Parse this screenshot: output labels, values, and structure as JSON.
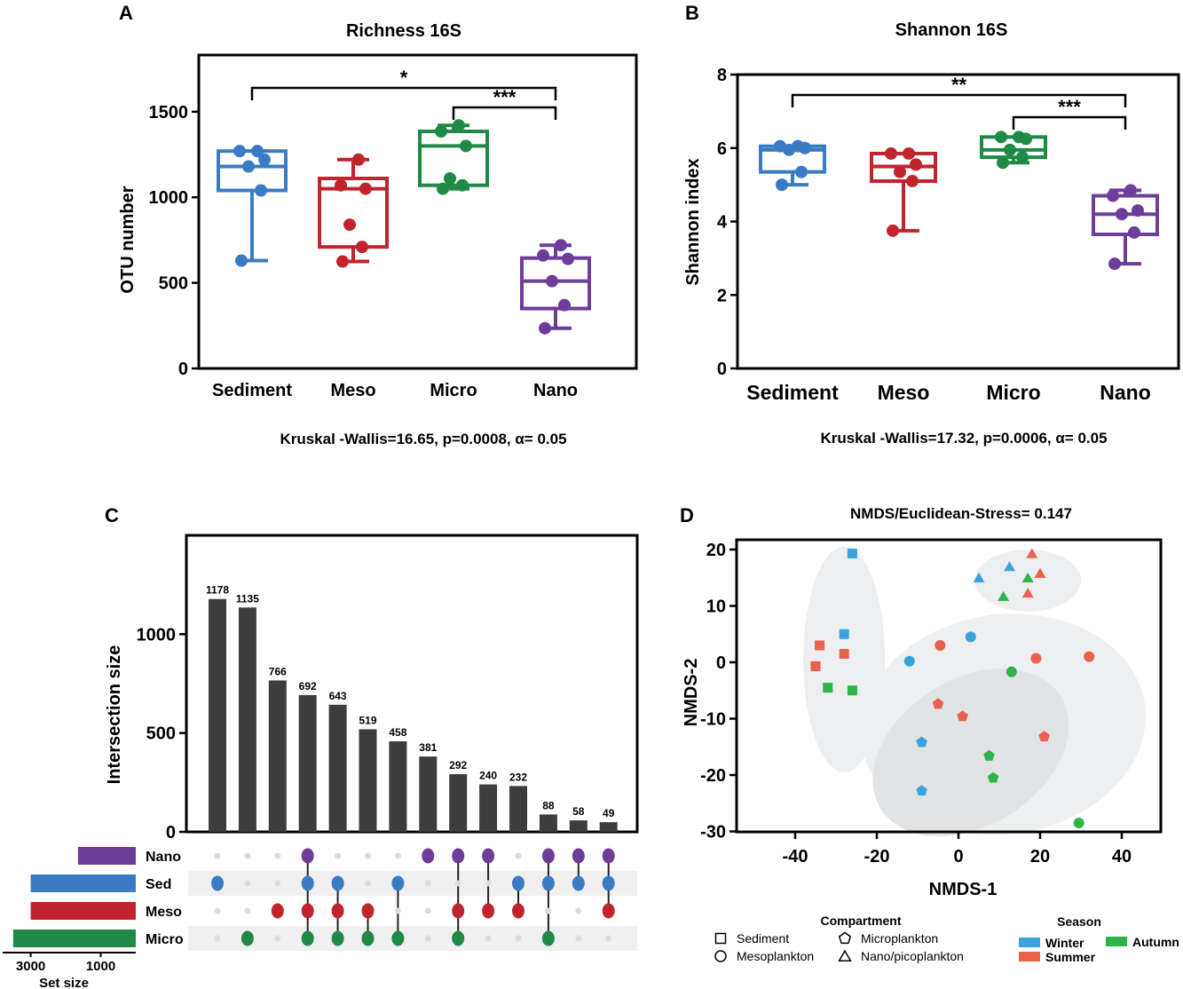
{
  "colors": {
    "sediment": "#3a7cc4",
    "meso": "#c0242c",
    "micro": "#1e8a46",
    "nano": "#6d3d9a",
    "bar": "#3d3d3d",
    "winter": "#3aa3dd",
    "summer": "#e9604c",
    "autumn": "#2cb34a"
  },
  "panels": {
    "a": "A",
    "b": "B",
    "c": "C",
    "d": "D"
  },
  "chart_data": [
    {
      "type": "box",
      "title": "Richness 16S",
      "xlabel": "",
      "ylabel": "OTU number",
      "categories": [
        "Sediment",
        "Meso",
        "Micro",
        "Nano"
      ],
      "ylim": [
        0,
        1800
      ],
      "yticks": [
        0,
        500,
        1000,
        1500
      ],
      "boxes": [
        {
          "min": 630,
          "q1": 1040,
          "median": 1180,
          "q3": 1270,
          "max": 1270,
          "points": [
            630,
            1040,
            1180,
            1220,
            1270,
            1270
          ]
        },
        {
          "min": 625,
          "q1": 710,
          "median": 1050,
          "q3": 1110,
          "max": 1220,
          "points": [
            625,
            710,
            840,
            1050,
            1070,
            1220
          ]
        },
        {
          "min": 1050,
          "q1": 1070,
          "median": 1300,
          "q3": 1385,
          "max": 1420,
          "points": [
            1050,
            1070,
            1110,
            1300,
            1385,
            1420
          ]
        },
        {
          "min": 235,
          "q1": 350,
          "median": 510,
          "q3": 645,
          "max": 720,
          "points": [
            235,
            370,
            510,
            640,
            660,
            720
          ]
        }
      ],
      "significance": [
        {
          "from": "Sediment",
          "to": "Nano",
          "label": "*"
        },
        {
          "from": "Micro",
          "to": "Nano",
          "label": "***"
        }
      ],
      "stat": "Kruskal -Wallis=16.65, p=0.0008, α= 0.05"
    },
    {
      "type": "box",
      "title": "Shannon 16S",
      "xlabel": "",
      "ylabel": "Shannon index",
      "categories": [
        "Sediment",
        "Meso",
        "Micro",
        "Nano"
      ],
      "ylim": [
        0,
        8
      ],
      "yticks": [
        0,
        2,
        4,
        6,
        8
      ],
      "boxes": [
        {
          "min": 5.0,
          "q1": 5.35,
          "median": 5.95,
          "q3": 6.05,
          "max": 6.05,
          "points": [
            5.0,
            5.35,
            5.95,
            6.0,
            6.05,
            6.05
          ]
        },
        {
          "min": 3.75,
          "q1": 5.1,
          "median": 5.5,
          "q3": 5.85,
          "max": 5.85,
          "points": [
            3.75,
            5.1,
            5.35,
            5.55,
            5.85,
            5.85
          ]
        },
        {
          "min": 5.6,
          "q1": 5.75,
          "median": 5.95,
          "q3": 6.3,
          "max": 6.3,
          "points": [
            5.6,
            5.75,
            5.95,
            6.25,
            6.3,
            6.3
          ]
        },
        {
          "min": 2.85,
          "q1": 3.65,
          "median": 4.2,
          "q3": 4.7,
          "max": 4.85,
          "points": [
            2.85,
            3.7,
            4.2,
            4.3,
            4.7,
            4.85
          ]
        }
      ],
      "significance": [
        {
          "from": "Sediment",
          "to": "Nano",
          "label": "**"
        },
        {
          "from": "Micro",
          "to": "Nano",
          "label": "***"
        }
      ],
      "stat": "Kruskal -Wallis=17.32, p=0.0006, α= 0.05"
    },
    {
      "type": "bar",
      "subtype": "upset",
      "title": "",
      "ylabel": "Intersection size",
      "ylim": [
        0,
        1500
      ],
      "yticks": [
        0,
        500,
        1000
      ],
      "values": [
        1178,
        1135,
        766,
        692,
        643,
        519,
        458,
        381,
        292,
        240,
        232,
        88,
        58,
        49
      ],
      "sets": [
        "Nano",
        "Sed",
        "Meso",
        "Micro"
      ],
      "set_sizes": [
        1650,
        3000,
        3000,
        3500
      ],
      "set_size_label": "Set size",
      "set_size_ticks": [
        3000,
        1000
      ],
      "set_size_tick_labels": [
        "3000",
        "1000"
      ],
      "memberships": [
        [
          "Sed"
        ],
        [
          "Micro"
        ],
        [
          "Meso"
        ],
        [
          "Nano",
          "Sed",
          "Meso",
          "Micro"
        ],
        [
          "Sed",
          "Meso",
          "Micro"
        ],
        [
          "Meso",
          "Micro"
        ],
        [
          "Sed",
          "Micro"
        ],
        [
          "Nano"
        ],
        [
          "Nano",
          "Meso",
          "Micro"
        ],
        [
          "Nano",
          "Meso"
        ],
        [
          "Sed",
          "Meso"
        ],
        [
          "Nano",
          "Sed",
          "Micro"
        ],
        [
          "Nano",
          "Sed"
        ],
        [
          "Nano",
          "Sed",
          "Meso"
        ]
      ]
    },
    {
      "type": "scatter",
      "title": "NMDS/Euclidean-Stress= 0.147",
      "xlabel": "NMDS-1",
      "ylabel": "NMDS-2",
      "xlim": [
        -50,
        50
      ],
      "ylim": [
        -30,
        22
      ],
      "xticks": [
        -40,
        -20,
        0,
        20,
        40
      ],
      "yticks": [
        20,
        10,
        0,
        -10,
        -20,
        -30
      ],
      "ellipses": [
        {
          "cx": -28,
          "cy": 0.5,
          "rx": 10,
          "ry": 20,
          "angle": 0,
          "fill": "#eceef0"
        },
        {
          "cx": 17,
          "cy": 14.5,
          "rx": 13,
          "ry": 5.5,
          "angle": 0,
          "fill": "#eceef0"
        },
        {
          "cx": 11,
          "cy": -11,
          "rx": 35,
          "ry": 19.5,
          "angle": -8,
          "fill": "#eeeff1"
        },
        {
          "cx": 3,
          "cy": -16,
          "rx": 26,
          "ry": 13,
          "angle": -32,
          "fill": "#e2e3e5"
        }
      ],
      "points": [
        {
          "x": -26,
          "y": 19.3,
          "shape": "square",
          "season": "Winter"
        },
        {
          "x": -28,
          "y": 5.0,
          "shape": "square",
          "season": "Winter"
        },
        {
          "x": -34,
          "y": 3.0,
          "shape": "square",
          "season": "Summer"
        },
        {
          "x": -28,
          "y": 1.5,
          "shape": "square",
          "season": "Summer"
        },
        {
          "x": -35,
          "y": -0.7,
          "shape": "square",
          "season": "Summer"
        },
        {
          "x": -32,
          "y": -4.5,
          "shape": "square",
          "season": "Autumn"
        },
        {
          "x": -26,
          "y": -5.0,
          "shape": "square",
          "season": "Autumn"
        },
        {
          "x": 5,
          "y": 15.0,
          "shape": "triangle",
          "season": "Winter"
        },
        {
          "x": 12.5,
          "y": 17.0,
          "shape": "triangle",
          "season": "Winter"
        },
        {
          "x": 18,
          "y": 19.3,
          "shape": "triangle",
          "season": "Summer"
        },
        {
          "x": 20,
          "y": 15.8,
          "shape": "triangle",
          "season": "Summer"
        },
        {
          "x": 17,
          "y": 15.0,
          "shape": "triangle",
          "season": "Autumn"
        },
        {
          "x": 11,
          "y": 11.7,
          "shape": "triangle",
          "season": "Autumn"
        },
        {
          "x": 17,
          "y": 12.3,
          "shape": "triangle",
          "season": "Summer"
        },
        {
          "x": -12,
          "y": 0.2,
          "shape": "circle",
          "season": "Winter"
        },
        {
          "x": 3,
          "y": 4.5,
          "shape": "circle",
          "season": "Winter"
        },
        {
          "x": -4.5,
          "y": 3.0,
          "shape": "circle",
          "season": "Summer"
        },
        {
          "x": 19,
          "y": 0.7,
          "shape": "circle",
          "season": "Summer"
        },
        {
          "x": 32,
          "y": 1.0,
          "shape": "circle",
          "season": "Summer"
        },
        {
          "x": 13,
          "y": -1.7,
          "shape": "circle",
          "season": "Autumn"
        },
        {
          "x": 29.5,
          "y": -28.5,
          "shape": "circle",
          "season": "Autumn"
        },
        {
          "x": -5,
          "y": -7.4,
          "shape": "pentagon",
          "season": "Summer"
        },
        {
          "x": 1,
          "y": -9.6,
          "shape": "pentagon",
          "season": "Summer"
        },
        {
          "x": 21,
          "y": -13.2,
          "shape": "pentagon",
          "season": "Summer"
        },
        {
          "x": -9,
          "y": -14.2,
          "shape": "pentagon",
          "season": "Winter"
        },
        {
          "x": 7.5,
          "y": -16.6,
          "shape": "pentagon",
          "season": "Autumn"
        },
        {
          "x": 8.5,
          "y": -20.5,
          "shape": "pentagon",
          "season": "Autumn"
        },
        {
          "x": -9,
          "y": -22.8,
          "shape": "pentagon",
          "season": "Winter"
        }
      ],
      "legend": {
        "compartment_title": "Compartment",
        "compartments": [
          {
            "shape": "square",
            "label": "Sediment"
          },
          {
            "shape": "pentagon",
            "label": "Microplankton"
          },
          {
            "shape": "circle",
            "label": "Mesoplankton"
          },
          {
            "shape": "triangle",
            "label": "Nano/picoplankton"
          }
        ],
        "season_title": "Season",
        "seasons": [
          {
            "name": "Winter",
            "label": "Winter"
          },
          {
            "name": "Autumn",
            "label": "Autumn"
          },
          {
            "name": "Summer",
            "label": "Summer"
          }
        ]
      }
    }
  ]
}
